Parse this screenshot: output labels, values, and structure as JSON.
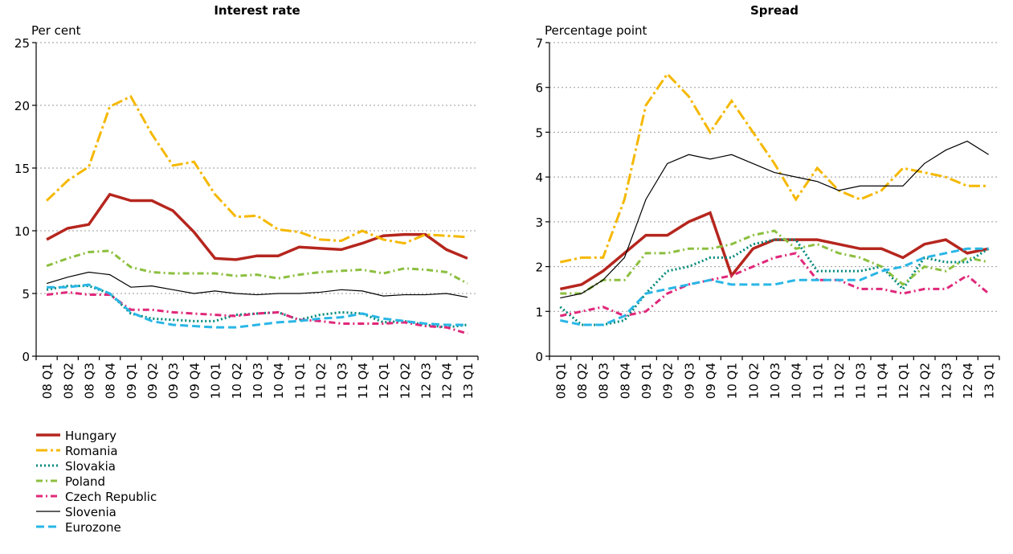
{
  "chart_data": [
    {
      "type": "line",
      "title": "Interest rate",
      "y_label": "Per cent",
      "categories": [
        "08 Q1",
        "08 Q2",
        "08 Q3",
        "08 Q4",
        "09 Q1",
        "09 Q2",
        "09 Q3",
        "09 Q4",
        "10 Q1",
        "10 Q2",
        "10 Q3",
        "10 Q4",
        "11 Q1",
        "11 Q2",
        "11 Q3",
        "11 Q4",
        "12 Q1",
        "12 Q2",
        "12 Q3",
        "12 Q4",
        "13 Q1"
      ],
      "ylim": [
        0,
        25
      ],
      "yticks": [
        0,
        5,
        10,
        15,
        20,
        25
      ],
      "grid": true,
      "series": [
        {
          "name": "Hungary",
          "color": "#b5261e",
          "style": "solid",
          "values": [
            9.3,
            10.2,
            10.5,
            12.9,
            12.4,
            12.4,
            11.6,
            9.9,
            7.8,
            7.7,
            8.0,
            8.0,
            8.7,
            8.6,
            8.5,
            9.0,
            9.6,
            9.7,
            9.7,
            8.5,
            7.8
          ]
        },
        {
          "name": "Romania",
          "color": "#f5b800",
          "style": "longdashdot",
          "values": [
            12.4,
            14.0,
            15.1,
            19.9,
            20.7,
            17.7,
            15.2,
            15.5,
            12.9,
            11.1,
            11.2,
            10.1,
            9.9,
            9.3,
            9.2,
            10.0,
            9.3,
            9.0,
            9.7,
            9.6,
            9.5
          ]
        },
        {
          "name": "Slovakia",
          "color": "#00897b",
          "style": "dotted",
          "values": [
            5.3,
            5.6,
            5.6,
            5.0,
            3.4,
            3.0,
            2.9,
            2.8,
            2.8,
            3.3,
            3.4,
            3.5,
            2.9,
            3.3,
            3.5,
            3.4,
            2.7,
            2.8,
            2.5,
            2.3,
            2.5
          ]
        },
        {
          "name": "Poland",
          "color": "#8cbf3f",
          "style": "dashdot",
          "values": [
            7.2,
            7.8,
            8.3,
            8.4,
            7.1,
            6.7,
            6.6,
            6.6,
            6.6,
            6.4,
            6.5,
            6.2,
            6.5,
            6.7,
            6.8,
            6.9,
            6.6,
            7.0,
            6.9,
            6.7,
            5.8
          ]
        },
        {
          "name": "Czech Republic",
          "color": "#e0287a",
          "style": "dashdot",
          "values": [
            4.9,
            5.1,
            4.9,
            4.9,
            3.7,
            3.7,
            3.5,
            3.4,
            3.3,
            3.2,
            3.4,
            3.5,
            2.9,
            2.8,
            2.6,
            2.6,
            2.6,
            2.7,
            2.4,
            2.3,
            1.8
          ]
        },
        {
          "name": "Slovenia",
          "color": "#000000",
          "style": "thin",
          "values": [
            5.8,
            6.3,
            6.7,
            6.5,
            5.5,
            5.6,
            5.3,
            5.0,
            5.2,
            5.0,
            4.9,
            5.0,
            5.0,
            5.1,
            5.3,
            5.2,
            4.8,
            4.9,
            4.9,
            5.0,
            4.7
          ]
        },
        {
          "name": "Eurozone",
          "color": "#29b6e6",
          "style": "dashed",
          "values": [
            5.5,
            5.5,
            5.7,
            5.0,
            3.5,
            2.8,
            2.5,
            2.4,
            2.3,
            2.3,
            2.5,
            2.7,
            2.8,
            3.0,
            3.1,
            3.4,
            3.0,
            2.8,
            2.6,
            2.5,
            2.5
          ]
        }
      ]
    },
    {
      "type": "line",
      "title": "Spread",
      "y_label": "Percentage point",
      "categories": [
        "08 Q1",
        "08 Q2",
        "08 Q3",
        "08 Q4",
        "09 Q1",
        "09 Q2",
        "09 Q3",
        "09 Q4",
        "10 Q1",
        "10 Q2",
        "10 Q3",
        "10 Q4",
        "11 Q1",
        "11 Q2",
        "11 Q3",
        "11 Q4",
        "12 Q1",
        "12 Q2",
        "12 Q3",
        "12 Q4",
        "13 Q1"
      ],
      "ylim": [
        0,
        7
      ],
      "yticks": [
        0,
        1,
        2,
        3,
        4,
        5,
        6,
        7
      ],
      "grid": true,
      "series": [
        {
          "name": "Hungary",
          "color": "#b5261e",
          "style": "solid",
          "values": [
            1.5,
            1.6,
            1.9,
            2.3,
            2.7,
            2.7,
            3.0,
            3.2,
            1.8,
            2.4,
            2.6,
            2.6,
            2.6,
            2.5,
            2.4,
            2.4,
            2.2,
            2.5,
            2.6,
            2.3,
            2.4
          ]
        },
        {
          "name": "Romania",
          "color": "#f5b800",
          "style": "longdashdot",
          "values": [
            2.1,
            2.2,
            2.2,
            3.5,
            5.6,
            6.3,
            5.8,
            5.0,
            5.7,
            5.0,
            4.3,
            3.5,
            4.2,
            3.7,
            3.5,
            3.7,
            4.2,
            4.1,
            4.0,
            3.8,
            3.8
          ]
        },
        {
          "name": "Slovakia",
          "color": "#00897b",
          "style": "dotted",
          "values": [
            1.1,
            0.7,
            0.7,
            0.8,
            1.4,
            1.9,
            2.0,
            2.2,
            2.2,
            2.5,
            2.6,
            2.6,
            1.9,
            1.9,
            1.9,
            2.0,
            1.5,
            2.2,
            2.1,
            2.1,
            2.4
          ]
        },
        {
          "name": "Poland",
          "color": "#8cbf3f",
          "style": "dashdot",
          "values": [
            1.4,
            1.4,
            1.7,
            1.7,
            2.3,
            2.3,
            2.4,
            2.4,
            2.5,
            2.7,
            2.8,
            2.4,
            2.5,
            2.3,
            2.2,
            2.0,
            1.6,
            2.0,
            1.9,
            2.2,
            2.1
          ]
        },
        {
          "name": "Czech Republic",
          "color": "#e0287a",
          "style": "dashdot",
          "values": [
            0.9,
            1.0,
            1.1,
            0.9,
            1.0,
            1.4,
            1.6,
            1.7,
            1.8,
            2.0,
            2.2,
            2.3,
            1.7,
            1.7,
            1.5,
            1.5,
            1.4,
            1.5,
            1.5,
            1.8,
            1.4
          ]
        },
        {
          "name": "Slovenia",
          "color": "#000000",
          "style": "thin",
          "values": [
            1.3,
            1.4,
            1.7,
            2.2,
            3.5,
            4.3,
            4.5,
            4.4,
            4.5,
            4.3,
            4.1,
            4.0,
            3.9,
            3.7,
            3.8,
            3.8,
            3.8,
            4.3,
            4.6,
            4.8,
            4.5
          ]
        },
        {
          "name": "Eurozone",
          "color": "#29b6e6",
          "style": "dashed",
          "values": [
            0.8,
            0.7,
            0.7,
            0.9,
            1.4,
            1.5,
            1.6,
            1.7,
            1.6,
            1.6,
            1.6,
            1.7,
            1.7,
            1.7,
            1.7,
            1.9,
            2.0,
            2.2,
            2.3,
            2.4,
            2.4
          ]
        }
      ]
    }
  ]
}
